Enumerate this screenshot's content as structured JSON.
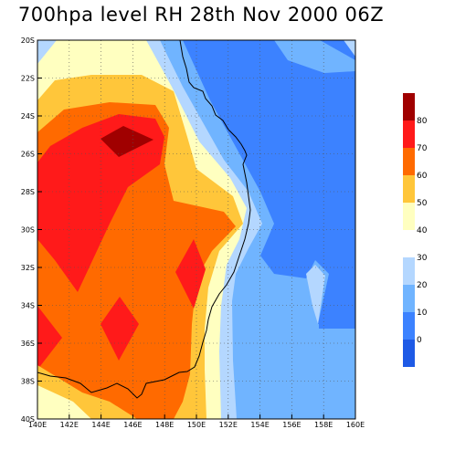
{
  "title": "700hpa level RH 28th Nov 2000 06Z",
  "map": {
    "lon_labels": [
      "140E",
      "142E",
      "144E",
      "146E",
      "148E",
      "150E",
      "152E",
      "154E",
      "156E",
      "158E",
      "160E"
    ],
    "lat_labels": [
      "20S",
      "22S",
      "24S",
      "26S",
      "28S",
      "30S",
      "32S",
      "34S",
      "36S",
      "38S",
      "40S"
    ],
    "lon_range": [
      140,
      160
    ],
    "lat_range": [
      -40,
      -20
    ],
    "grid": "dotted",
    "coastline": "Eastern Australia (Queensland and New South Wales)"
  },
  "colorbar": {
    "upper_levels": [
      "80",
      "70",
      "60",
      "50",
      "40"
    ],
    "lower_levels": [
      "30",
      "20",
      "10",
      "0"
    ],
    "upper_colors": [
      "#a00000",
      "#ff1a1a",
      "#ff6a00",
      "#ffc63a",
      "#ffffc0"
    ],
    "lower_colors": [
      "#b4d7ff",
      "#70b4ff",
      "#3c82ff",
      "#1e5ae6"
    ]
  },
  "colors": {
    "background": "#ffffff",
    "dark_red": "#a00000",
    "red": "#ff1a1a",
    "orange": "#ff6a00",
    "gold": "#ffc63a",
    "cream": "#ffffc0",
    "pale_blue": "#b4d7ff",
    "light_blue": "#70b4ff",
    "mid_blue": "#3c82ff",
    "deep_blue": "#1e5ae6"
  }
}
